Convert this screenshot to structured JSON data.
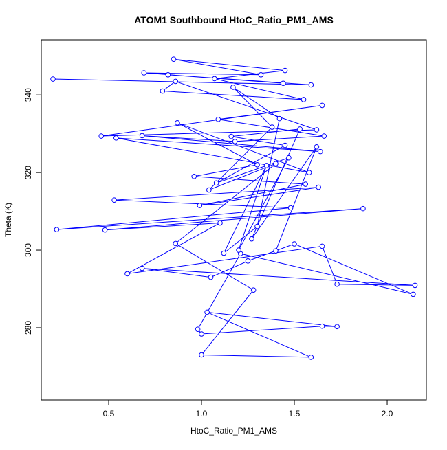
{
  "chart_data": {
    "type": "line",
    "title": "ATOM1 Southbound HtoC_Ratio_PM1_AMS",
    "x_label": "HtoC_Ratio_PM1_AMS",
    "y_label": "Theta (K)",
    "color": "#0000ff",
    "x": [
      0.2,
      1.59,
      0.82,
      1.44,
      0.69,
      1.32,
      0.85,
      1.45,
      1.07,
      1.55,
      0.79,
      0.86,
      1.62,
      0.46,
      1.65,
      1.09,
      1.66,
      1.18,
      0.68,
      1.64,
      0.54,
      1.58,
      0.87,
      1.3,
      0.96,
      1.56,
      0.99,
      1.63,
      0.53,
      1.48,
      0.22,
      1.87,
      0.48,
      1.1,
      0.6,
      1.65,
      1.73,
      2.15,
      0.68,
      1.05,
      1.25,
      1.5,
      2.14,
      1.21,
      0.98,
      1.0,
      1.65,
      1.73,
      1.03,
      1.59,
      1.0,
      1.28,
      0.86,
      1.4,
      1.04,
      1.38,
      1.17,
      1.42,
      1.3,
      1.12,
      1.35,
      1.2,
      1.47,
      1.08,
      1.45,
      1.16,
      1.53,
      1.27,
      1.62,
      1.4
    ],
    "y": [
      344.1,
      342.6,
      345.2,
      343.0,
      345.7,
      345.2,
      349.2,
      346.3,
      344.2,
      338.8,
      341.0,
      343.5,
      331.0,
      329.4,
      337.3,
      333.7,
      329.4,
      328.0,
      329.5,
      325.4,
      328.9,
      320.0,
      332.8,
      322.0,
      319.0,
      317.0,
      311.5,
      316.2,
      312.9,
      310.9,
      305.3,
      310.7,
      305.2,
      307.0,
      293.9,
      301.0,
      291.2,
      290.9,
      295.3,
      293.0,
      297.2,
      301.6,
      288.6,
      299.1,
      279.6,
      278.4,
      280.4,
      280.3,
      284.0,
      272.4,
      273.0,
      289.7,
      301.7,
      322.3,
      315.5,
      331.7,
      342.0,
      333.9,
      306.1,
      299.2,
      321.8,
      300.0,
      323.8,
      317.3,
      327.0,
      329.3,
      331.2,
      302.9,
      326.6,
      299.8
    ],
    "xlim": [
      0.137,
      2.211
    ],
    "ylim": [
      261.4,
      354.2
    ],
    "xticks": [
      0.5,
      {
        "value": 1.0,
        "label": "1.0"
      },
      1.5,
      {
        "value": 2.0,
        "label": "2.0"
      }
    ],
    "yticks": [
      280,
      300,
      320,
      340
    ]
  }
}
